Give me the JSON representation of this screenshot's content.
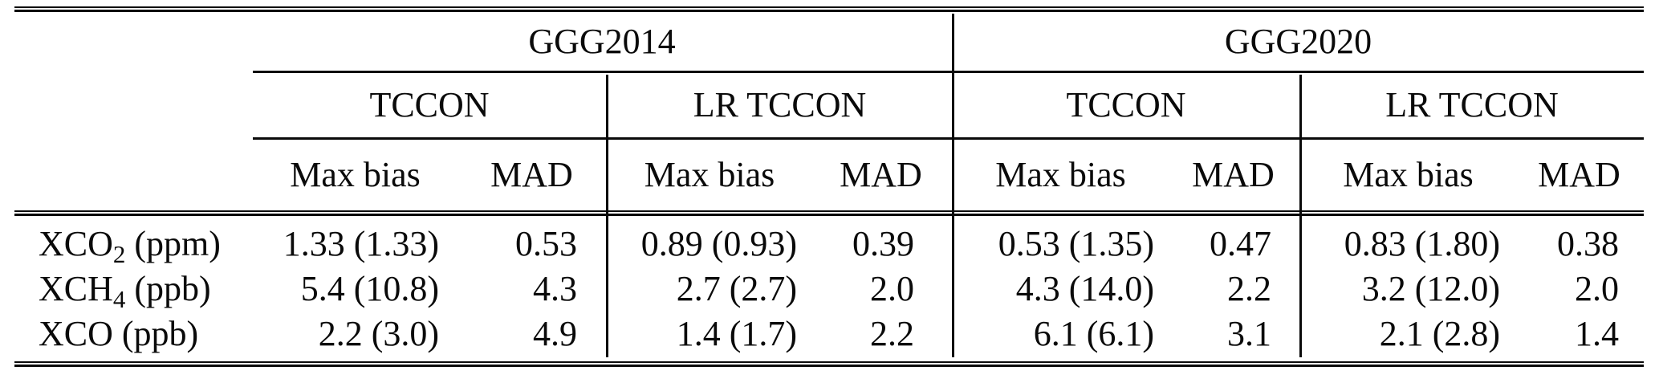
{
  "table": {
    "col_groups": [
      {
        "label": "GGG2014"
      },
      {
        "label": "GGG2020"
      }
    ],
    "sub_groups": [
      {
        "label": "TCCON"
      },
      {
        "label": "LR TCCON"
      },
      {
        "label": "TCCON"
      },
      {
        "label": "LR TCCON"
      }
    ],
    "metric_headers": [
      {
        "label": "Max bias"
      },
      {
        "label": "MAD"
      },
      {
        "label": "Max bias"
      },
      {
        "label": "MAD"
      },
      {
        "label": "Max bias"
      },
      {
        "label": "MAD"
      },
      {
        "label": "Max bias"
      },
      {
        "label": "MAD"
      }
    ],
    "rows": [
      {
        "label": {
          "base": "XCO",
          "sub": "2",
          "unit": " (ppm)"
        },
        "values": [
          "1.33 (1.33)",
          "0.53",
          "0.89 (0.93)",
          "0.39",
          "0.53 (1.35)",
          "0.47",
          "0.83 (1.80)",
          "0.38"
        ]
      },
      {
        "label": {
          "base": "XCH",
          "sub": "4",
          "unit": " (ppb)"
        },
        "values": [
          "5.4 (10.8)",
          "4.3",
          "2.7 (2.7)",
          "2.0",
          "4.3 (14.0)",
          "2.2",
          "3.2 (12.0)",
          "2.0"
        ]
      },
      {
        "label": {
          "base": "XCO",
          "sub": "",
          "unit": " (ppb)"
        },
        "values": [
          "2.2 (3.0)",
          "4.9",
          "1.4 (1.7)",
          "2.2",
          "6.1 (6.1)",
          "3.1",
          "2.1 (2.8)",
          "1.4"
        ]
      }
    ]
  },
  "colors": {
    "text": "#0a0a0a",
    "rule": "#0a0a0a",
    "background": "#ffffff"
  }
}
